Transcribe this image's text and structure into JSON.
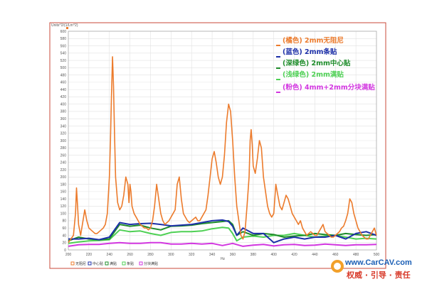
{
  "chart_data": {
    "type": "line",
    "y_axis_header": "Units^2/(1/Lm^2)",
    "xlabel": "Hz",
    "xlim": [
      200,
      500
    ],
    "ylim": [
      0,
      600
    ],
    "x_ticks": [
      200,
      220,
      240,
      260,
      280,
      300,
      320,
      340,
      360,
      380,
      400,
      420,
      440,
      460,
      480,
      500
    ],
    "y_ticks": [
      0,
      20,
      40,
      60,
      80,
      100,
      120,
      140,
      160,
      180,
      200,
      220,
      240,
      260,
      280,
      300,
      320,
      340,
      360,
      380,
      400,
      420,
      440,
      460,
      480,
      500,
      520,
      540,
      560,
      580,
      600
    ],
    "grid": true,
    "legend_position": "top-right",
    "series": [
      {
        "name": "(橘色) 2mm无阻尼",
        "color": "#ec7b2c",
        "x": [
          200,
          205,
          207,
          208,
          209,
          210,
          212,
          214,
          216,
          218,
          220,
          222,
          224,
          226,
          228,
          230,
          232,
          234,
          236,
          238,
          240,
          241,
          242,
          243,
          244,
          245,
          246,
          248,
          250,
          252,
          254,
          256,
          258,
          259,
          260,
          261,
          262,
          264,
          266,
          268,
          270,
          272,
          274,
          276,
          278,
          280,
          282,
          284,
          286,
          288,
          290,
          292,
          294,
          296,
          298,
          300,
          302,
          304,
          306,
          308,
          310,
          312,
          314,
          316,
          318,
          320,
          322,
          324,
          326,
          328,
          330,
          332,
          334,
          336,
          338,
          340,
          342,
          344,
          346,
          348,
          350,
          352,
          354,
          356,
          358,
          360,
          362,
          364,
          366,
          368,
          370,
          372,
          374,
          376,
          377,
          378,
          379,
          380,
          382,
          384,
          386,
          388,
          390,
          392,
          394,
          396,
          398,
          400,
          402,
          404,
          406,
          408,
          410,
          412,
          414,
          416,
          418,
          420,
          422,
          424,
          426,
          428,
          430,
          432,
          434,
          436,
          438,
          440,
          442,
          444,
          446,
          448,
          450,
          452,
          454,
          456,
          458,
          460,
          462,
          464,
          466,
          468,
          470,
          472,
          474,
          476,
          478,
          480,
          482,
          484,
          486,
          488,
          490,
          492,
          494,
          496,
          498,
          500
        ],
        "y": [
          20,
          40,
          100,
          170,
          120,
          70,
          40,
          75,
          110,
          80,
          60,
          55,
          50,
          45,
          45,
          50,
          55,
          60,
          70,
          100,
          200,
          300,
          420,
          530,
          450,
          320,
          200,
          130,
          110,
          120,
          150,
          200,
          180,
          130,
          180,
          160,
          120,
          100,
          90,
          80,
          70,
          65,
          60,
          60,
          55,
          60,
          80,
          120,
          180,
          140,
          100,
          80,
          70,
          75,
          80,
          90,
          100,
          110,
          180,
          200,
          140,
          100,
          90,
          80,
          75,
          80,
          85,
          90,
          80,
          80,
          90,
          100,
          110,
          150,
          200,
          250,
          270,
          240,
          200,
          180,
          200,
          260,
          350,
          400,
          380,
          300,
          200,
          120,
          80,
          40,
          30,
          50,
          120,
          200,
          300,
          330,
          290,
          230,
          210,
          250,
          300,
          280,
          200,
          160,
          120,
          100,
          90,
          100,
          180,
          150,
          120,
          110,
          130,
          150,
          140,
          120,
          100,
          90,
          80,
          70,
          80,
          60,
          50,
          40,
          45,
          50,
          45,
          40,
          40,
          50,
          60,
          70,
          50,
          45,
          40,
          35,
          35,
          40,
          45,
          50,
          60,
          65,
          80,
          100,
          140,
          130,
          100,
          80,
          60,
          50,
          40,
          35,
          30,
          30,
          40,
          50,
          60,
          40
        ]
      },
      {
        "name": "(蓝色) 2mm条贴",
        "color": "#1c2fa8",
        "x": [
          200,
          210,
          220,
          230,
          240,
          250,
          260,
          270,
          280,
          290,
          300,
          310,
          320,
          330,
          340,
          350,
          356,
          360,
          364,
          370,
          380,
          390,
          400,
          410,
          420,
          430,
          440,
          450,
          460,
          470,
          480,
          490,
          500
        ],
        "y": [
          30,
          30,
          32,
          28,
          35,
          75,
          70,
          72,
          73,
          70,
          66,
          68,
          70,
          75,
          80,
          82,
          78,
          65,
          40,
          60,
          45,
          45,
          20,
          30,
          35,
          30,
          35,
          35,
          40,
          30,
          45,
          50,
          40
        ]
      },
      {
        "name": "(深绿色) 2mm中心贴",
        "color": "#1e8c2a",
        "x": [
          200,
          210,
          220,
          230,
          240,
          250,
          260,
          270,
          280,
          290,
          300,
          310,
          320,
          330,
          340,
          350,
          356,
          360,
          364,
          370,
          380,
          390,
          400,
          410,
          420,
          430,
          440,
          450,
          460,
          470,
          480,
          490,
          500
        ],
        "y": [
          25,
          35,
          30,
          28,
          30,
          70,
          65,
          68,
          60,
          55,
          65,
          66,
          68,
          72,
          75,
          78,
          80,
          70,
          40,
          50,
          40,
          45,
          42,
          35,
          38,
          40,
          45,
          42,
          40,
          45,
          42,
          40,
          42
        ]
      },
      {
        "name": "(浅绿色) 2mm满贴",
        "color": "#4ed054",
        "x": [
          200,
          210,
          220,
          230,
          240,
          250,
          260,
          270,
          280,
          290,
          300,
          310,
          320,
          330,
          340,
          350,
          356,
          360,
          364,
          370,
          380,
          390,
          400,
          410,
          420,
          430,
          440,
          450,
          460,
          470,
          480,
          490,
          500
        ],
        "y": [
          18,
          22,
          25,
          26,
          28,
          55,
          50,
          52,
          45,
          40,
          48,
          50,
          50,
          52,
          58,
          62,
          60,
          45,
          25,
          35,
          38,
          35,
          40,
          40,
          45,
          40,
          35,
          38,
          40,
          35,
          30,
          32,
          30
        ]
      },
      {
        "name": "(粉色) 4mm+2mm分块满贴",
        "color": "#d236e0",
        "x": [
          200,
          210,
          220,
          230,
          240,
          250,
          260,
          270,
          280,
          290,
          300,
          310,
          320,
          330,
          340,
          350,
          360,
          370,
          380,
          390,
          400,
          410,
          420,
          430,
          440,
          450,
          460,
          470,
          480,
          490,
          500
        ],
        "y": [
          10,
          14,
          15,
          15,
          18,
          20,
          18,
          18,
          20,
          20,
          16,
          16,
          18,
          16,
          18,
          12,
          18,
          10,
          13,
          15,
          11,
          14,
          15,
          12,
          13,
          16,
          14,
          12,
          14,
          14,
          15
        ]
      }
    ],
    "bottom_legend": [
      "无阻尼",
      "中心贴",
      "满贴",
      "条贴",
      "分块满贴"
    ]
  },
  "watermark": {
    "url": "www.CarCAV.com",
    "slogan": "权威 · 引导 · 责任"
  }
}
